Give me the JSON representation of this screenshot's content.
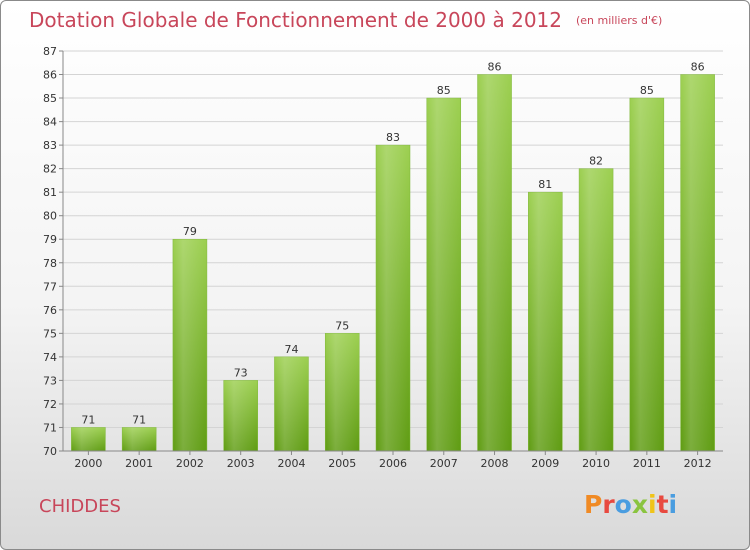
{
  "header": {
    "title": "Dotation Globale de Fonctionnement de 2000 à 2012",
    "unit": "(en milliers d'€)"
  },
  "footer": {
    "commune": "CHIDDES",
    "logo_text": "Proxiti"
  },
  "colors": {
    "title": "#c8465a",
    "bar_top": "#9ccf50",
    "bar_bottom": "#5f9c12",
    "logo_letters": [
      "#f08a24",
      "#e8493f",
      "#4a9de0",
      "#8ac43f",
      "#f0c419",
      "#e8493f",
      "#4a9de0"
    ]
  },
  "chart_data": {
    "type": "bar",
    "title": "Dotation Globale de Fonctionnement de 2000 à 2012",
    "subtitle": "(en milliers d'€)",
    "xlabel": "",
    "ylabel": "",
    "categories": [
      "2000",
      "2001",
      "2002",
      "2003",
      "2004",
      "2005",
      "2006",
      "2007",
      "2008",
      "2009",
      "2010",
      "2011",
      "2012"
    ],
    "values": [
      71,
      71,
      79,
      73,
      74,
      75,
      83,
      85,
      86,
      81,
      82,
      85,
      86
    ],
    "ylim": [
      70,
      87
    ],
    "yticks": [
      70,
      71,
      72,
      73,
      74,
      75,
      76,
      77,
      78,
      79,
      80,
      81,
      82,
      83,
      84,
      85,
      86,
      87
    ],
    "grid": true,
    "data_labels": true
  }
}
